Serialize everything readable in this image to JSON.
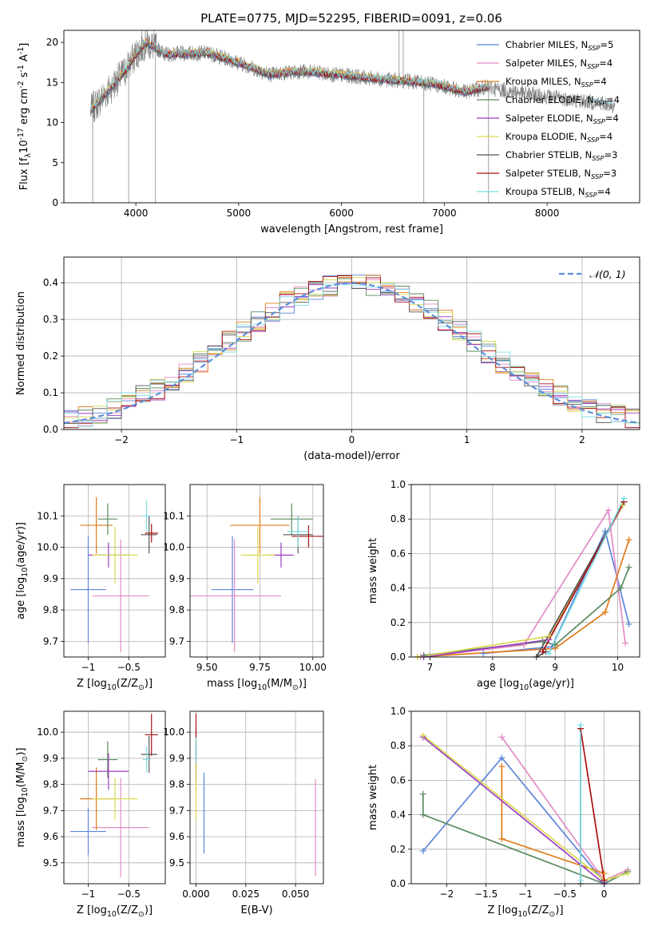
{
  "figure_title": "PLATE=0775, MJD=52295, FIBERID=0091, z=0.06",
  "colors": {
    "c_miles": "#5b86d9",
    "s_miles": "#e38bc6",
    "k_miles": "#e07b1a",
    "c_elodie": "#5a8a5e",
    "s_elodie": "#9b3fc1",
    "k_elodie": "#d9d950",
    "c_stelib": "#555555",
    "s_stelib": "#aa1111",
    "k_stelib": "#7fdde6",
    "gauss": "#5b8fd9",
    "data": "#808080"
  },
  "chart_data": [
    {
      "id": "spectrum",
      "type": "line",
      "xlabel": "wavelength [Angstrom, rest frame]",
      "ylabel": "Flux [f$_\\lambda$10$^{-17}$ erg cm$^{-2}$ s$^{-1}$ A$^{-1}$]",
      "xlim": [
        3300,
        8900
      ],
      "ylim": [
        0,
        21.5
      ],
      "xticks": [
        4000,
        5000,
        6000,
        7000,
        8000
      ],
      "yticks": [
        0,
        5,
        10,
        15,
        20
      ],
      "grid": false,
      "legend_position": "upper-right",
      "legend": [
        "Chabrier MILES, N_SSP=5",
        "Salpeter MILES, N_SSP=4",
        "Kroupa MILES, N_SSP=4",
        "Chabrier ELODIE, N_SSP=4",
        "Salpeter ELODIE, N_SSP=4",
        "Kroupa ELODIE, N_SSP=4",
        "Chabrier STELIB, N_SSP=3",
        "Salpeter STELIB, N_SSP=3",
        "Kroupa STELIB, N_SSP=4"
      ],
      "continuum_points": [
        [
          3560,
          11.5
        ],
        [
          3700,
          13.5
        ],
        [
          3900,
          16.5
        ],
        [
          4000,
          18.5
        ],
        [
          4100,
          20.0
        ],
        [
          4300,
          18.5
        ],
        [
          4500,
          18.6
        ],
        [
          4700,
          18.7
        ],
        [
          4900,
          17.9
        ],
        [
          5100,
          17.0
        ],
        [
          5300,
          16.0
        ],
        [
          5600,
          16.4
        ],
        [
          6000,
          15.9
        ],
        [
          6400,
          15.4
        ],
        [
          6800,
          15.0
        ],
        [
          7000,
          14.5
        ],
        [
          7200,
          13.8
        ],
        [
          7400,
          14.4
        ],
        [
          7800,
          13.6
        ],
        [
          8200,
          12.9
        ],
        [
          8600,
          12.3
        ],
        [
          8660,
          12.0
        ]
      ],
      "model_end_wavelength": 7430
    },
    {
      "id": "residual_hist",
      "type": "histogram",
      "xlabel": "(data-model)/error",
      "ylabel": "Normed distribution",
      "xlim": [
        -2.5,
        2.5
      ],
      "ylim": [
        0,
        0.47
      ],
      "xticks": [
        -2,
        -1,
        0,
        1,
        2
      ],
      "yticks": [
        0.0,
        0.1,
        0.2,
        0.3,
        0.4
      ],
      "grid": true,
      "legend_position": "upper-right",
      "legend": [
        "$\\mathcal{N}(0, 1)$"
      ],
      "bin_edges_range": [
        -2.5,
        2.5
      ],
      "n_bins": 40
    },
    {
      "id": "age_vs_Z",
      "type": "errorbar",
      "xlabel": "Z [log$_{10}$(Z/Z$_\\odot$)]",
      "ylabel": "age  [log$_{10}$(age/yr)]",
      "xlim": [
        -1.3,
        -0.05
      ],
      "ylim": [
        9.65,
        10.2
      ],
      "xticks": [
        -1.0,
        -0.5
      ],
      "yticks": [
        9.7,
        9.8,
        9.9,
        10.0,
        10.1
      ],
      "grid": true,
      "points": [
        {
          "series": "c_miles",
          "x": -1.0,
          "xerr": 0.22,
          "y": 9.865,
          "yerr": 0.17
        },
        {
          "series": "s_miles",
          "x": -0.6,
          "xerr": 0.35,
          "y": 9.845,
          "yerr": 0.18
        },
        {
          "series": "k_miles",
          "x": -0.9,
          "xerr": 0.2,
          "y": 10.07,
          "yerr": 0.09
        },
        {
          "series": "c_elodie",
          "x": -0.76,
          "xerr": 0.12,
          "y": 10.09,
          "yerr": 0.05
        },
        {
          "series": "s_elodie",
          "x": -0.75,
          "xerr": 0.25,
          "y": 9.975,
          "yerr": 0.04
        },
        {
          "series": "k_elodie",
          "x": -0.67,
          "xerr": 0.28,
          "y": 9.975,
          "yerr": 0.09
        },
        {
          "series": "c_stelib",
          "x": -0.25,
          "xerr": 0.1,
          "y": 10.04,
          "yerr": 0.06
        },
        {
          "series": "s_stelib",
          "x": -0.22,
          "xerr": 0.08,
          "y": 10.045,
          "yerr": 0.03
        },
        {
          "series": "k_stelib",
          "x": -0.28,
          "xerr": 0.05,
          "y": 10.1,
          "yerr": 0.05
        }
      ]
    },
    {
      "id": "age_vs_mass",
      "type": "errorbar",
      "xlabel": "mass [log$_{10}$(M/M$_\\odot$)]",
      "ylabel": "",
      "xlim": [
        9.42,
        10.05
      ],
      "ylim": [
        9.65,
        10.2
      ],
      "xticks": [
        9.5,
        9.75,
        10.0
      ],
      "xticklabels": [
        "9.50",
        "9.75",
        "10.00"
      ],
      "yticks": [
        9.7,
        9.8,
        9.9,
        10.0,
        10.1
      ],
      "grid": true,
      "points": [
        {
          "series": "c_miles",
          "x": 9.62,
          "xerr": 0.1,
          "y": 9.865,
          "yerr": 0.17
        },
        {
          "series": "s_miles",
          "x": 9.63,
          "xerr": 0.22,
          "y": 9.845,
          "yerr": 0.18
        },
        {
          "series": "k_miles",
          "x": 9.75,
          "xerr": 0.14,
          "y": 10.07,
          "yerr": 0.09
        },
        {
          "series": "c_elodie",
          "x": 9.9,
          "xerr": 0.1,
          "y": 10.09,
          "yerr": 0.05
        },
        {
          "series": "s_elodie",
          "x": 9.85,
          "xerr": 0.06,
          "y": 9.975,
          "yerr": 0.04
        },
        {
          "series": "k_elodie",
          "x": 9.74,
          "xerr": 0.08,
          "y": 9.975,
          "yerr": 0.09
        },
        {
          "series": "c_stelib",
          "x": 9.93,
          "xerr": 0.07,
          "y": 10.04,
          "yerr": 0.06
        },
        {
          "series": "s_stelib",
          "x": 9.98,
          "xerr": 0.08,
          "y": 10.035,
          "yerr": 0.035
        },
        {
          "series": "k_stelib",
          "x": 9.93,
          "xerr": 0.05,
          "y": 10.05,
          "yerr": 0.05
        }
      ]
    },
    {
      "id": "weight_vs_age",
      "type": "line",
      "xlabel": "age  [log$_{10}$(age/yr)]",
      "ylabel": "mass weight",
      "xlim": [
        6.7,
        10.35
      ],
      "ylim": [
        0,
        1.0
      ],
      "xticks": [
        7,
        8,
        9,
        10
      ],
      "yticks": [
        0.0,
        0.2,
        0.4,
        0.6,
        0.8,
        1.0
      ],
      "grid": true,
      "series": [
        {
          "name": "c_miles",
          "x": [
            7.85,
            8.95,
            9.8,
            10.18
          ],
          "y": [
            0.02,
            0.06,
            0.73,
            0.19
          ]
        },
        {
          "name": "s_miles",
          "x": [
            6.85,
            8.5,
            9.85,
            10.12
          ],
          "y": [
            0.0,
            0.07,
            0.85,
            0.08
          ]
        },
        {
          "name": "k_miles",
          "x": [
            6.8,
            9.0,
            9.8,
            10.18
          ],
          "y": [
            0.0,
            0.05,
            0.26,
            0.68
          ]
        },
        {
          "name": "c_elodie",
          "x": [
            6.9,
            8.8,
            9.0,
            10.05,
            10.18
          ],
          "y": [
            0.01,
            0.09,
            0.07,
            0.4,
            0.52
          ]
        },
        {
          "name": "s_elodie",
          "x": [
            6.9,
            8.9,
            10.08
          ],
          "y": [
            0.0,
            0.1,
            0.88
          ]
        },
        {
          "name": "k_elodie",
          "x": [
            6.8,
            8.9,
            10.08
          ],
          "y": [
            0.0,
            0.12,
            0.88
          ]
        },
        {
          "name": "c_stelib",
          "x": [
            8.85,
            8.7,
            10.1
          ],
          "y": [
            0.03,
            0.0,
            0.9
          ]
        },
        {
          "name": "s_stelib",
          "x": [
            8.8,
            10.1
          ],
          "y": [
            0.03,
            0.9
          ]
        },
        {
          "name": "k_stelib",
          "x": [
            8.9,
            10.1
          ],
          "y": [
            0.02,
            0.92
          ]
        }
      ]
    },
    {
      "id": "mass_vs_Z",
      "type": "errorbar",
      "xlabel": "Z [log$_{10}$(Z/Z$_\\odot$)]",
      "ylabel": "mass [log$_{10}$(M/M$_\\odot$)]",
      "xlim": [
        -1.3,
        -0.05
      ],
      "ylim": [
        9.42,
        10.08
      ],
      "xticks": [
        -1.0,
        -0.5
      ],
      "yticks": [
        9.5,
        9.6,
        9.7,
        9.8,
        9.9,
        10.0
      ],
      "grid": true,
      "points": [
        {
          "series": "c_miles",
          "x": -1.0,
          "xerr": 0.22,
          "y": 9.62,
          "yerr": 0.09
        },
        {
          "series": "s_miles",
          "x": -0.6,
          "xerr": 0.35,
          "y": 9.635,
          "yerr": 0.19
        },
        {
          "series": "k_miles",
          "x": -0.9,
          "xerr": 0.2,
          "y": 9.745,
          "yerr": 0.12
        },
        {
          "series": "c_elodie",
          "x": -0.76,
          "xerr": 0.12,
          "y": 9.895,
          "yerr": 0.07
        },
        {
          "series": "s_elodie",
          "x": -0.75,
          "xerr": 0.25,
          "y": 9.85,
          "yerr": 0.07
        },
        {
          "series": "k_elodie",
          "x": -0.67,
          "xerr": 0.28,
          "y": 9.745,
          "yerr": 0.08
        },
        {
          "series": "c_stelib",
          "x": -0.25,
          "xerr": 0.1,
          "y": 9.915,
          "yerr": 0.07
        },
        {
          "series": "s_stelib",
          "x": -0.22,
          "xerr": 0.08,
          "y": 9.99,
          "yerr": 0.08
        },
        {
          "series": "k_stelib",
          "x": -0.28,
          "xerr": 0.05,
          "y": 9.895,
          "yerr": 0.05
        }
      ]
    },
    {
      "id": "mass_vs_ebv",
      "type": "errorbar",
      "xlabel": "E(B-V)",
      "ylabel": "",
      "xlim": [
        -0.003,
        0.064
      ],
      "ylim": [
        9.42,
        10.08
      ],
      "xticks": [
        0.0,
        0.025,
        0.05
      ],
      "xticklabels": [
        "0.000",
        "0.025",
        "0.050"
      ],
      "yticks": [
        9.5,
        9.6,
        9.7,
        9.8,
        9.9,
        10.0
      ],
      "grid": true,
      "points": [
        {
          "series": "c_miles",
          "x": 0.004,
          "xerr": 0,
          "y": 9.69,
          "yerr": 0.155
        },
        {
          "series": "s_miles",
          "x": 0.06,
          "xerr": 0,
          "y": 9.635,
          "yerr": 0.185
        },
        {
          "series": "k_miles",
          "x": 0.0,
          "xerr": 0,
          "y": 9.85,
          "yerr": 0.08
        },
        {
          "series": "c_elodie",
          "x": 0.0,
          "xerr": 0,
          "y": 9.9,
          "yerr": 0.06
        },
        {
          "series": "s_elodie",
          "x": 0.0,
          "xerr": 0,
          "y": 9.87,
          "yerr": 0.06
        },
        {
          "series": "k_elodie",
          "x": 0.0,
          "xerr": 0,
          "y": 9.78,
          "yerr": 0.12
        },
        {
          "series": "c_stelib",
          "x": 0.0,
          "xerr": 0,
          "y": 9.95,
          "yerr": 0.06
        },
        {
          "series": "s_stelib",
          "x": 0.0,
          "xerr": 0,
          "y": 9.99,
          "yerr": 0.08
        },
        {
          "series": "k_stelib",
          "x": 0.0,
          "xerr": 0,
          "y": 9.93,
          "yerr": 0.05
        }
      ]
    },
    {
      "id": "weight_vs_Z",
      "type": "line",
      "xlabel": "Z [log$_{10}$(Z/Z$_\\odot$)]",
      "ylabel": "mass weight",
      "xlim": [
        -2.45,
        0.45
      ],
      "ylim": [
        0,
        1.0
      ],
      "xticks": [
        -2.0,
        -1.5,
        -1.0,
        -0.5,
        0.0
      ],
      "yticks": [
        0.0,
        0.2,
        0.4,
        0.6,
        0.8,
        1.0
      ],
      "grid": true,
      "series": [
        {
          "name": "c_miles",
          "x": [
            -2.3,
            -1.3,
            0.0
          ],
          "y": [
            0.19,
            0.73,
            0.01
          ]
        },
        {
          "name": "s_miles",
          "x": [
            -1.3,
            0.0,
            0.3
          ],
          "y": [
            0.85,
            0.02,
            0.08
          ]
        },
        {
          "name": "k_miles",
          "x": [
            -1.3,
            -1.3,
            0.0,
            0.0
          ],
          "y": [
            0.68,
            0.26,
            0.06,
            0.02
          ]
        },
        {
          "name": "c_elodie",
          "x": [
            -2.3,
            -2.3,
            0.0,
            0.3
          ],
          "y": [
            0.52,
            0.4,
            0.0,
            0.07
          ]
        },
        {
          "name": "s_elodie",
          "x": [
            -2.3,
            0.0
          ],
          "y": [
            0.85,
            0.0
          ]
        },
        {
          "name": "k_elodie",
          "x": [
            -2.3,
            0.0,
            0.3
          ],
          "y": [
            0.86,
            0.02,
            0.06
          ]
        },
        {
          "name": "c_stelib",
          "x": [
            -0.3,
            -0.3
          ],
          "y": [
            0.0,
            0.9
          ]
        },
        {
          "name": "s_stelib",
          "x": [
            -0.3,
            0.0
          ],
          "y": [
            0.9,
            0.02
          ]
        },
        {
          "name": "k_stelib",
          "x": [
            -0.3,
            -0.3
          ],
          "y": [
            0.02,
            0.92
          ]
        }
      ]
    }
  ]
}
